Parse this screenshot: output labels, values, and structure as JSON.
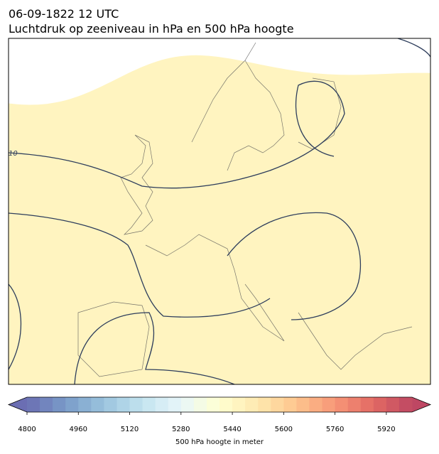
{
  "header": {
    "date": "06-09-1822 12 UTC",
    "title": "Luchtdruk op zeeniveau in hPa en 500 hPa hoogte"
  },
  "map": {
    "contour_labels": [
      "10"
    ]
  },
  "colorbar": {
    "label": "500 hPa hoogte in meter",
    "lim": [
      4800,
      6000
    ],
    "step": 40,
    "ticks": [
      4800,
      4960,
      5120,
      5280,
      5440,
      5600,
      5760,
      5920
    ]
  }
}
